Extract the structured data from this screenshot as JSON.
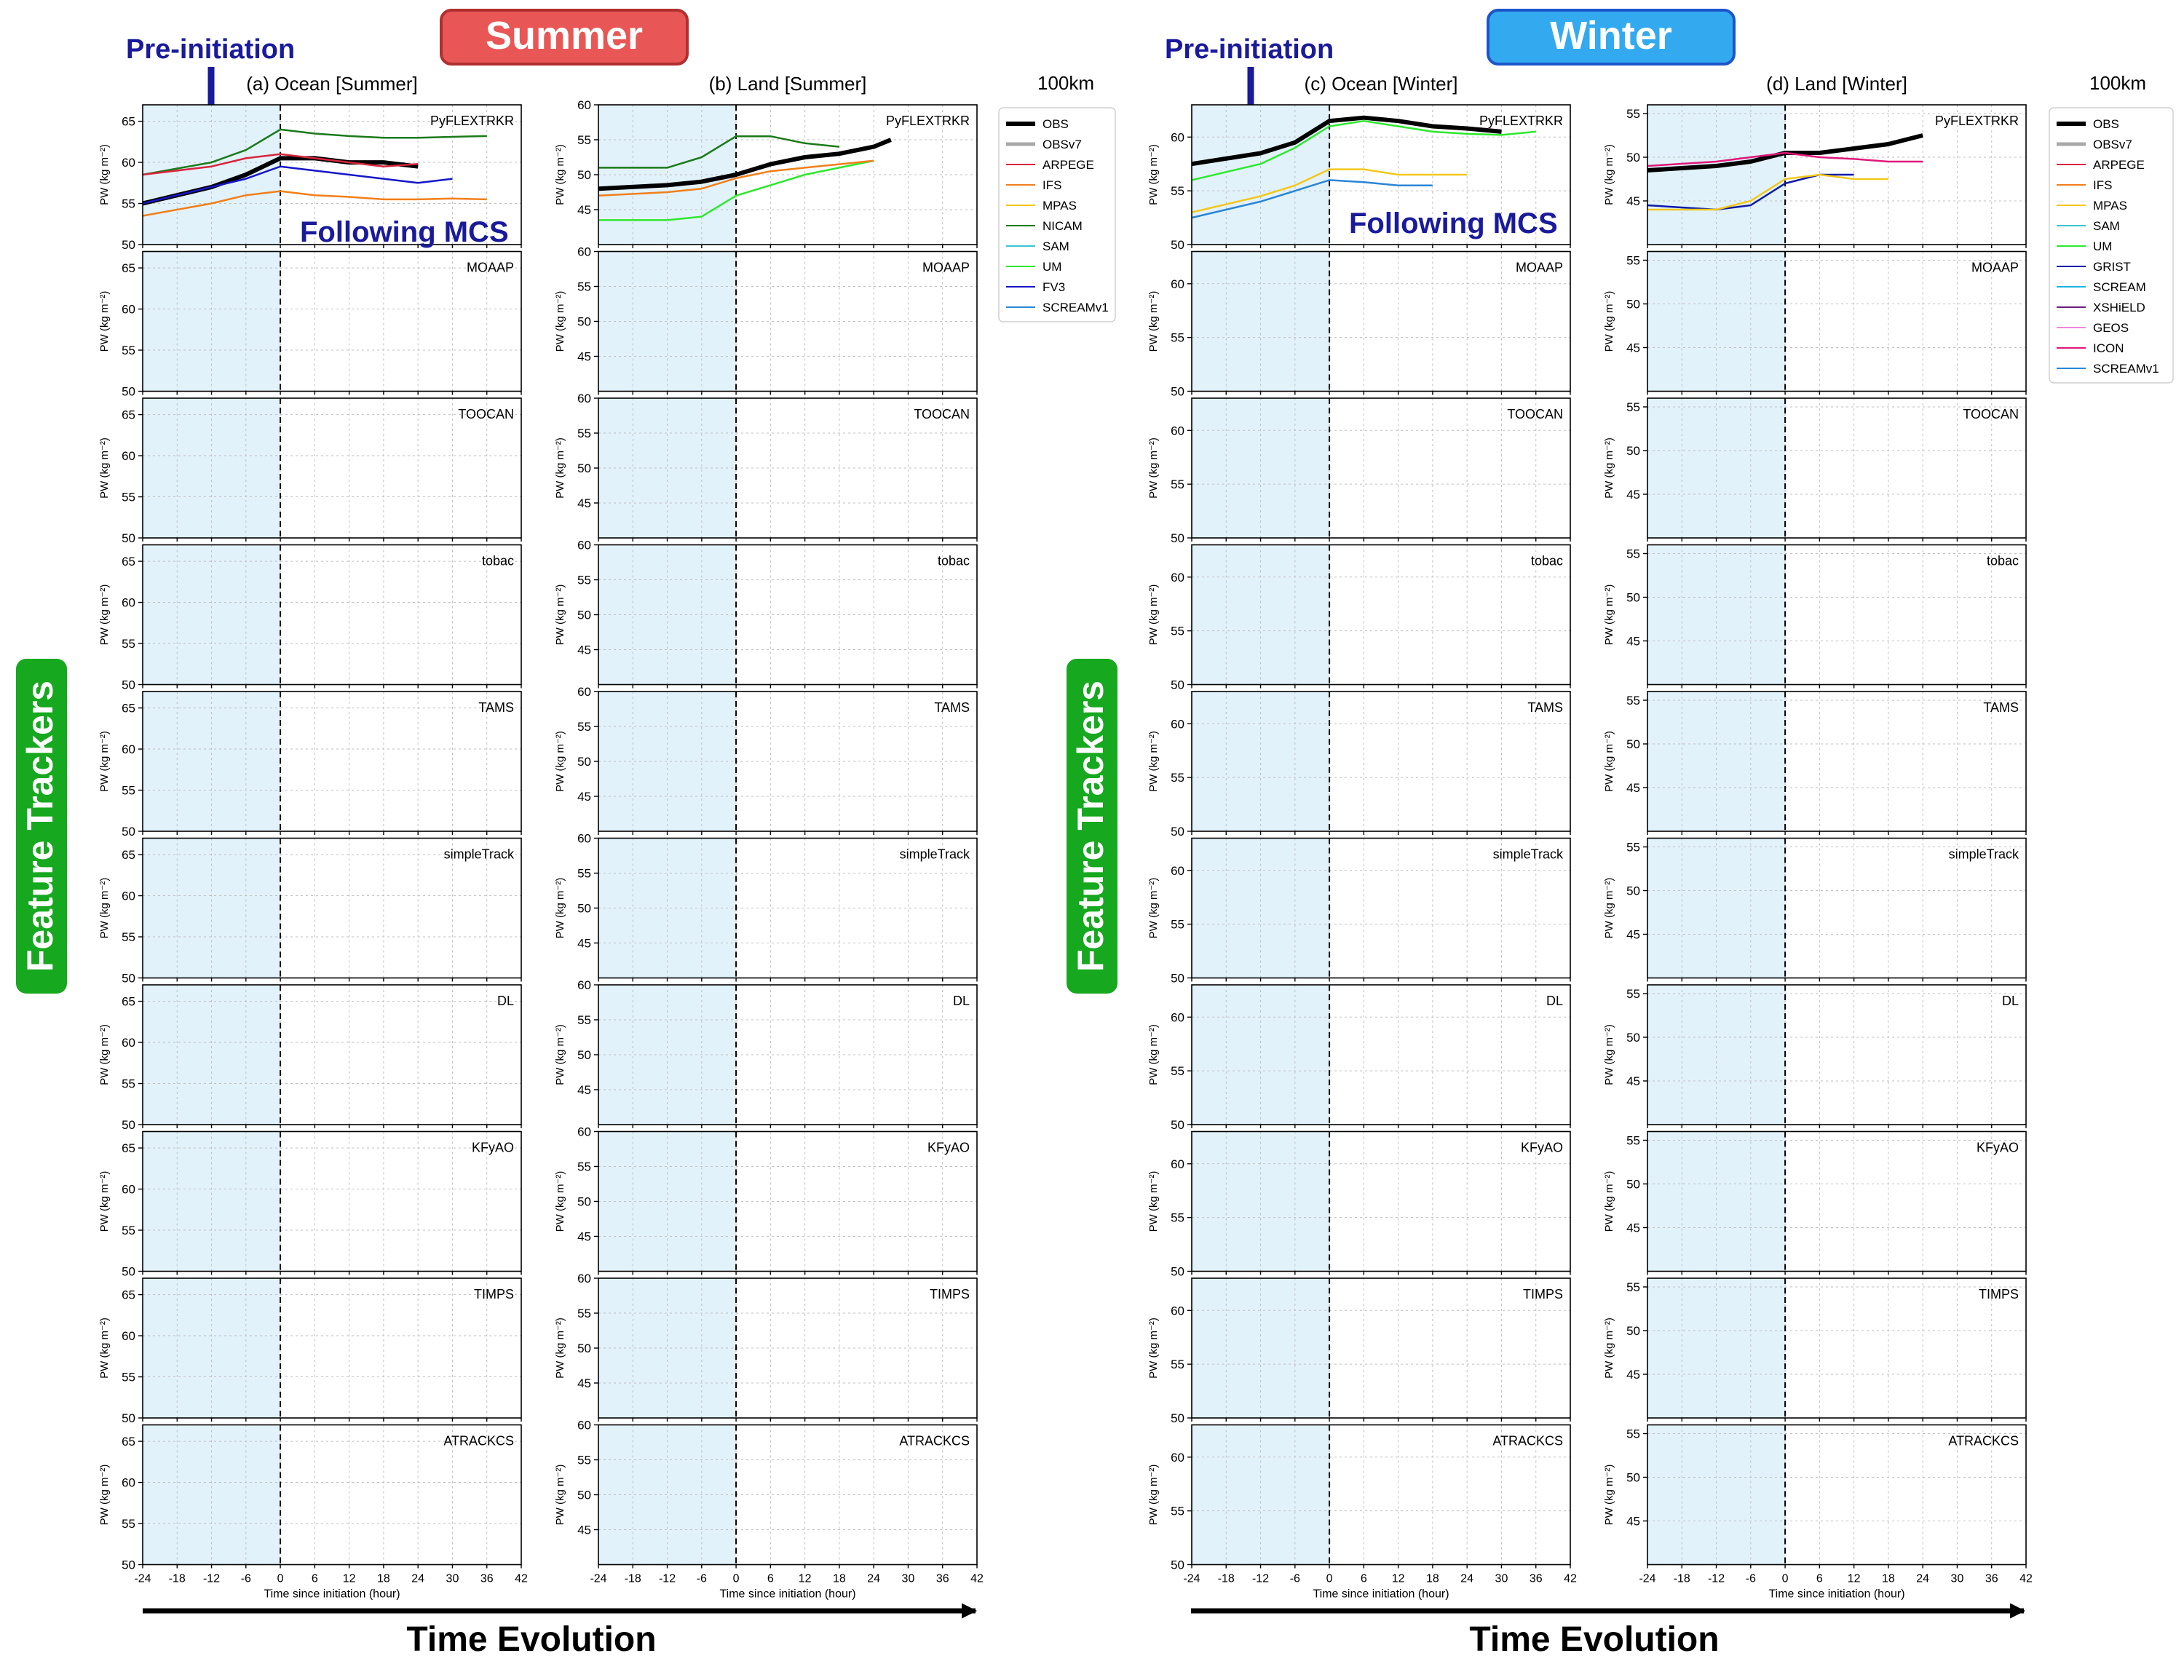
{
  "figure": {
    "summer_badge": "Summer",
    "winter_badge": "Winter",
    "pre_initiation": "Pre-initiation",
    "following_mcs": "Following MCS",
    "feature_trackers": "Feature Trackers",
    "time_evolution": "Time Evolution",
    "scale_label": "100km",
    "colors": {
      "summer_badge": "#e85656",
      "winter_badge": "#33aaf0",
      "trackers_badge": "#16a81e",
      "annotation": "#1a1a9c",
      "pre_initiation_shading": "#e2f2fb"
    }
  },
  "chart_data": {
    "type": "line",
    "xlabel": "Time since initiation (hour)",
    "ylabel": "PW (kg m⁻²)",
    "xlim": [
      -24,
      42
    ],
    "xticks": [
      -24,
      -18,
      -12,
      -6,
      0,
      6,
      12,
      18,
      24,
      30,
      36,
      42
    ],
    "shaded_interval": [
      -24,
      0
    ],
    "trackers": [
      "PyFLEXTRKR",
      "MOAAP",
      "TOOCAN",
      "tobac",
      "TAMS",
      "simpleTrack",
      "DL",
      "KFyAO",
      "TIMPS",
      "ATRACKCS"
    ],
    "columns": [
      {
        "title": "(a) Ocean [Summer]",
        "ylim": [
          50,
          67
        ],
        "yticks": [
          50,
          55,
          60,
          65
        ]
      },
      {
        "title": "(b) Land [Summer]",
        "ylim": [
          40,
          60
        ],
        "yticks": [
          45,
          50,
          55,
          60
        ]
      },
      {
        "title": "(c) Ocean [Winter]",
        "ylim": [
          50,
          63
        ],
        "yticks": [
          50,
          55,
          60
        ]
      },
      {
        "title": "(d) Land [Winter]",
        "ylim": [
          40,
          56
        ],
        "yticks": [
          45,
          50,
          55
        ]
      }
    ],
    "legends": [
      {
        "name": "summer",
        "entries": [
          {
            "name": "OBS",
            "color": "#000000",
            "width": 6
          },
          {
            "name": "OBSv7",
            "color": "#a8a8a8",
            "width": 5
          },
          {
            "name": "ARPEGE",
            "color": "#d7263d",
            "width": 2
          },
          {
            "name": "IFS",
            "color": "#f07f1a",
            "width": 2
          },
          {
            "name": "MPAS",
            "color": "#f2c81b",
            "width": 2
          },
          {
            "name": "NICAM",
            "color": "#1b7a1b",
            "width": 2
          },
          {
            "name": "SAM",
            "color": "#38c5cf",
            "width": 2
          },
          {
            "name": "UM",
            "color": "#2ee82e",
            "width": 2
          },
          {
            "name": "FV3",
            "color": "#1616c9",
            "width": 2
          },
          {
            "name": "SCREAMv1",
            "color": "#2a86d6",
            "width": 2
          }
        ]
      },
      {
        "name": "winter",
        "entries": [
          {
            "name": "OBS",
            "color": "#000000",
            "width": 6
          },
          {
            "name": "OBSv7",
            "color": "#a8a8a8",
            "width": 5
          },
          {
            "name": "ARPEGE",
            "color": "#d7263d",
            "width": 2
          },
          {
            "name": "IFS",
            "color": "#f07f1a",
            "width": 2
          },
          {
            "name": "MPAS",
            "color": "#f2c81b",
            "width": 2
          },
          {
            "name": "SAM",
            "color": "#38c5cf",
            "width": 2
          },
          {
            "name": "UM",
            "color": "#2ee82e",
            "width": 2
          },
          {
            "name": "GRIST",
            "color": "#0d1aa8",
            "width": 2
          },
          {
            "name": "SCREAM",
            "color": "#1ab4e0",
            "width": 2
          },
          {
            "name": "XSHiELD",
            "color": "#6b1f7a",
            "width": 2
          },
          {
            "name": "GEOS",
            "color": "#ee86e0",
            "width": 2
          },
          {
            "name": "ICON",
            "color": "#e0177a",
            "width": 2
          },
          {
            "name": "SCREAMv1",
            "color": "#2a86d6",
            "width": 2
          }
        ]
      }
    ],
    "approx_series": [
      {
        "column": 0,
        "tracker": "PyFLEXTRKR",
        "series": [
          {
            "name": "OBS",
            "x": [
              -24,
              -12,
              -6,
              0,
              6,
              12,
              18,
              24
            ],
            "y": [
              55,
              57,
              58.5,
              60.5,
              60.5,
              60,
              60,
              59.5
            ]
          },
          {
            "name": "NICAM",
            "x": [
              -24,
              -12,
              -6,
              0,
              6,
              12,
              18,
              24,
              30,
              36
            ],
            "y": [
              58.5,
              60,
              61.5,
              64,
              63.5,
              63.2,
              63,
              63,
              63.1,
              63.2
            ]
          },
          {
            "name": "ARPEGE",
            "x": [
              -24,
              -12,
              -6,
              0,
              6,
              12,
              18,
              24
            ],
            "y": [
              58.5,
              59.5,
              60.5,
              61,
              60.5,
              60,
              59.5,
              59.8
            ]
          },
          {
            "name": "FV3",
            "x": [
              -24,
              -12,
              -6,
              0,
              6,
              12,
              18,
              24,
              30
            ],
            "y": [
              55,
              57,
              58,
              59.5,
              59,
              58.5,
              58,
              57.5,
              58
            ]
          },
          {
            "name": "IFS",
            "x": [
              -24,
              -12,
              -6,
              0,
              6,
              12,
              18,
              24,
              30,
              36
            ],
            "y": [
              53.5,
              55,
              56,
              56.5,
              56,
              55.8,
              55.5,
              55.5,
              55.6,
              55.5
            ]
          }
        ]
      },
      {
        "column": 1,
        "tracker": "PyFLEXTRKR",
        "series": [
          {
            "name": "OBS",
            "x": [
              -24,
              -12,
              -6,
              0,
              6,
              12,
              18,
              24,
              27
            ],
            "y": [
              48,
              48.5,
              49,
              50,
              51.5,
              52.5,
              53,
              54,
              55
            ]
          },
          {
            "name": "NICAM",
            "x": [
              -24,
              -12,
              -6,
              0,
              6,
              12,
              18
            ],
            "y": [
              51,
              51,
              52.5,
              55.5,
              55.5,
              54.5,
              54
            ]
          },
          {
            "name": "UM",
            "x": [
              -24,
              -12,
              -6,
              0,
              6,
              12,
              18,
              24
            ],
            "y": [
              43.5,
              43.5,
              44,
              47,
              48.5,
              50,
              51,
              52
            ]
          },
          {
            "name": "IFS",
            "x": [
              -24,
              -12,
              -6,
              0,
              6,
              12,
              18,
              24
            ],
            "y": [
              47,
              47.5,
              48,
              49.5,
              50.5,
              51,
              51.5,
              52
            ]
          }
        ]
      },
      {
        "column": 2,
        "tracker": "PyFLEXTRKR",
        "series": [
          {
            "name": "OBS",
            "x": [
              -24,
              -12,
              -6,
              0,
              6,
              12,
              18,
              24,
              30
            ],
            "y": [
              57.5,
              58.5,
              59.5,
              61.5,
              61.8,
              61.5,
              61,
              60.8,
              60.5
            ]
          },
          {
            "name": "UM",
            "x": [
              -24,
              -12,
              -6,
              0,
              6,
              12,
              18,
              24,
              30,
              36
            ],
            "y": [
              56,
              57.5,
              59,
              61,
              61.5,
              61,
              60.5,
              60.3,
              60.2,
              60.5
            ]
          },
          {
            "name": "MPAS",
            "x": [
              -24,
              -12,
              -6,
              0,
              6,
              12,
              18,
              24
            ],
            "y": [
              53,
              54.5,
              55.5,
              57,
              57,
              56.5,
              56.5,
              56.5
            ]
          },
          {
            "name": "SCREAMv1",
            "x": [
              -24,
              -12,
              -6,
              0,
              6,
              12,
              18
            ],
            "y": [
              52.5,
              54,
              55,
              56,
              55.8,
              55.5,
              55.5
            ]
          }
        ]
      },
      {
        "column": 3,
        "tracker": "PyFLEXTRKR",
        "series": [
          {
            "name": "OBS",
            "x": [
              -24,
              -12,
              -6,
              0,
              6,
              12,
              18,
              24
            ],
            "y": [
              48.5,
              49,
              49.5,
              50.5,
              50.5,
              51,
              51.5,
              52.5
            ]
          },
          {
            "name": "ICON",
            "x": [
              -24,
              -12,
              -6,
              0,
              6,
              12,
              18,
              24
            ],
            "y": [
              49,
              49.5,
              50,
              50.5,
              50,
              49.8,
              49.5,
              49.5
            ]
          },
          {
            "name": "GRIST",
            "x": [
              -24,
              -12,
              -6,
              0,
              6,
              12
            ],
            "y": [
              44.5,
              44,
              44.5,
              47,
              48,
              48
            ]
          },
          {
            "name": "MPAS",
            "x": [
              -24,
              -12,
              -6,
              0,
              6,
              12,
              18
            ],
            "y": [
              44,
              44,
              45,
              47.5,
              48,
              47.5,
              47.5
            ]
          }
        ]
      }
    ]
  }
}
